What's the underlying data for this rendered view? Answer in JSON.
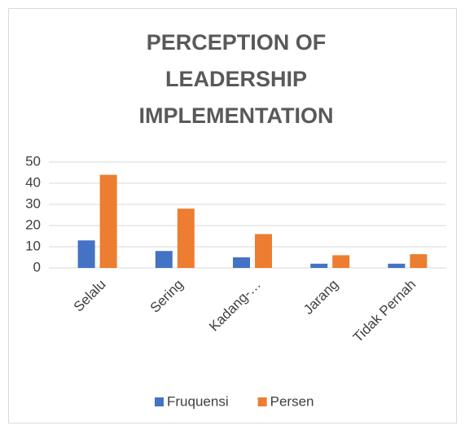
{
  "chart_data": {
    "type": "bar",
    "title": "PERCEPTION OF LEADERSHIP IMPLEMENTATION",
    "categories": [
      "Selalu",
      "Sering",
      "Kadang-…",
      "Jarang",
      "Tidak Pernah"
    ],
    "series": [
      {
        "name": "Fruquensi",
        "color": "#4472c4",
        "values": [
          13,
          8,
          5,
          2,
          2
        ]
      },
      {
        "name": "Persen",
        "color": "#ed7d31",
        "values": [
          44,
          28,
          16,
          6,
          6.5
        ]
      }
    ],
    "ylim": [
      0,
      50
    ],
    "yticks": [
      0,
      10,
      20,
      30,
      40,
      50
    ],
    "grid": true,
    "legend": "bottom"
  }
}
